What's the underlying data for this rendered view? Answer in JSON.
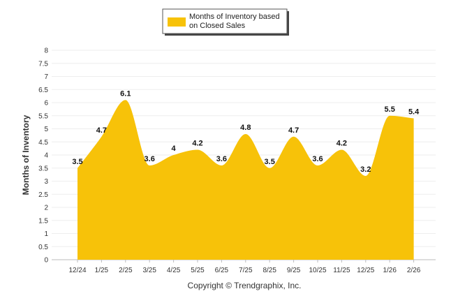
{
  "chart_data": {
    "type": "area",
    "categories": [
      "12/24",
      "1/25",
      "2/25",
      "3/25",
      "4/25",
      "5/25",
      "6/25",
      "7/25",
      "8/25",
      "9/25",
      "10/25",
      "11/25",
      "12/25",
      "1/26",
      "2/26"
    ],
    "series": [
      {
        "name": "Months of Inventory based on Closed Sales",
        "values": [
          3.5,
          4.7,
          6.1,
          3.6,
          4,
          4.2,
          3.6,
          4.8,
          3.5,
          4.7,
          3.6,
          4.2,
          3.2,
          5.5,
          5.4
        ],
        "color": "#F7C209"
      }
    ],
    "legend": {
      "line1": "Months of Inventory based",
      "line2": "on Closed Sales",
      "placement": "top-center"
    },
    "ylabel": "Months of Inventory",
    "ylim": [
      0,
      8
    ],
    "yticks": [
      "0",
      "0.5",
      "1",
      "1.5",
      "2",
      "2.5",
      "3",
      "3.5",
      "4",
      "4.5",
      "5",
      "5.5",
      "6",
      "6.5",
      "7",
      "7.5",
      "8"
    ],
    "grid": true,
    "copyright": "Copyright © Trendgraphix, Inc."
  }
}
